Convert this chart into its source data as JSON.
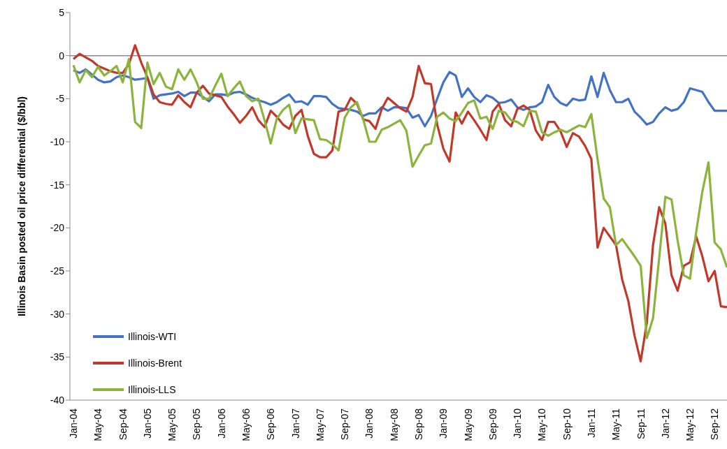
{
  "chart_data": {
    "type": "line",
    "ylabel": "Illinois Basin posted oil price differential ($/bbl)",
    "categories": [
      "Jan-04",
      null,
      null,
      null,
      "May-04",
      null,
      null,
      null,
      "Sep-04",
      null,
      null,
      null,
      "Jan-05",
      null,
      null,
      null,
      "May-05",
      null,
      null,
      null,
      "Sep-05",
      null,
      null,
      null,
      "Jan-06",
      null,
      null,
      null,
      "May-06",
      null,
      null,
      null,
      "Sep-06",
      null,
      null,
      null,
      "Jan-07",
      null,
      null,
      null,
      "May-07",
      null,
      null,
      null,
      "Sep-07",
      null,
      null,
      null,
      "Jan-08",
      null,
      null,
      null,
      "May-08",
      null,
      null,
      null,
      "Sep-08",
      null,
      null,
      null,
      "Jan-09",
      null,
      null,
      null,
      "May-09",
      null,
      null,
      null,
      "Sep-09",
      null,
      null,
      null,
      "Jan-10",
      null,
      null,
      null,
      "May-10",
      null,
      null,
      null,
      "Sep-10",
      null,
      null,
      null,
      "Jan-11",
      null,
      null,
      null,
      "May-11",
      null,
      null,
      null,
      "Sep-11",
      null,
      null,
      null,
      "Jan-12",
      null,
      null,
      null,
      "May-12",
      null,
      null,
      null,
      "Sep-12",
      null,
      null
    ],
    "series": [
      {
        "name": "Illinois-WTI",
        "color": "#4472c4",
        "values": [
          -1.7,
          -2.0,
          -1.6,
          -2.2,
          -2.8,
          -3.1,
          -3.0,
          -2.5,
          -2.3,
          -2.5,
          -2.8,
          -2.7,
          -2.6,
          -5.0,
          -4.6,
          -4.5,
          -4.4,
          -4.2,
          -4.7,
          -4.3,
          -4.3,
          -4.8,
          -5.3,
          -4.5,
          -4.5,
          -4.6,
          -4.3,
          -4.2,
          -4.5,
          -4.9,
          -5.2,
          -5.4,
          -5.7,
          -5.4,
          -4.9,
          -4.5,
          -5.4,
          -5.3,
          -5.7,
          -4.7,
          -4.7,
          -4.8,
          -5.6,
          -6.1,
          -6.2,
          -6.3,
          -6.5,
          -7.0,
          -6.7,
          -6.7,
          -6.0,
          -6.4,
          -6.0,
          -6.0,
          -6.1,
          -7.2,
          -6.9,
          -8.2,
          -7.0,
          -5.0,
          -3.1,
          -1.9,
          -2.3,
          -4.8,
          -3.8,
          -4.8,
          -5.4,
          -4.6,
          -4.9,
          -5.5,
          -5.4,
          -5.1,
          -6.0,
          -6.3,
          -6.0,
          -5.9,
          -5.4,
          -3.4,
          -4.8,
          -5.5,
          -5.8,
          -5.0,
          -5.2,
          -5.1,
          -2.4,
          -4.8,
          -2.0,
          -4.0,
          -5.4,
          -5.4,
          -5.0,
          -6.5,
          -7.2,
          -8.0,
          -7.7,
          -6.7,
          -6.0,
          -6.4,
          -6.2,
          -5.4,
          -3.8,
          -4.0,
          -4.2,
          -5.4,
          -6.4,
          -6.4,
          -6.4
        ]
      },
      {
        "name": "Illinois-Brent",
        "color": "#c0392b",
        "values": [
          -0.4,
          0.2,
          -0.2,
          -0.6,
          -1.2,
          -1.5,
          -1.8,
          -2.0,
          -2.0,
          -1.0,
          1.2,
          -0.8,
          -2.5,
          -4.5,
          -5.4,
          -5.6,
          -5.7,
          -4.6,
          -5.4,
          -6.0,
          -4.3,
          -3.5,
          -4.4,
          -4.6,
          -4.8,
          -5.9,
          -6.8,
          -7.8,
          -7.0,
          -6.0,
          -7.5,
          -8.3,
          -6.4,
          -7.1,
          -8.0,
          -8.5,
          -7.0,
          -6.3,
          -9.3,
          -11.4,
          -11.8,
          -11.8,
          -11.0,
          -6.5,
          -6.3,
          -4.9,
          -5.6,
          -7.4,
          -7.6,
          -8.5,
          -6.2,
          -4.9,
          -5.5,
          -6.1,
          -6.5,
          -4.8,
          -1.2,
          -3.2,
          -3.3,
          -8.0,
          -10.8,
          -12.3,
          -6.6,
          -7.9,
          -6.5,
          -7.5,
          -8.6,
          -9.8,
          -6.5,
          -5.6,
          -7.5,
          -8.2,
          -6.2,
          -5.8,
          -6.3,
          -8.7,
          -9.8,
          -7.7,
          -7.7,
          -8.8,
          -10.6,
          -9.0,
          -9.4,
          -10.5,
          -12.0,
          -22.3,
          -20.0,
          -21.0,
          -22.0,
          -26.0,
          -28.5,
          -32.5,
          -35.5,
          -31.0,
          -22.0,
          -17.6,
          -19.5,
          -25.5,
          -27.3,
          -24.4,
          -24.0,
          -21.0,
          -23.3,
          -26.2,
          -25.0,
          -29.1,
          -29.2
        ]
      },
      {
        "name": "Illinois-LLS",
        "color": "#8cb43d",
        "values": [
          -1.1,
          -3.1,
          -1.7,
          -2.5,
          -1.3,
          -2.3,
          -1.8,
          -1.2,
          -3.1,
          -0.4,
          -7.7,
          -8.4,
          -0.8,
          -3.3,
          -2.0,
          -3.6,
          -3.9,
          -1.6,
          -2.8,
          -1.6,
          -3.1,
          -5.0,
          -5.0,
          -3.5,
          -2.1,
          -4.7,
          -3.8,
          -3.0,
          -4.7,
          -5.3,
          -5.0,
          -7.5,
          -10.2,
          -7.3,
          -6.3,
          -5.7,
          -9.0,
          -7.3,
          -7.4,
          -7.5,
          -9.7,
          -9.8,
          -10.3,
          -11.0,
          -7.2,
          -6.0,
          -5.4,
          -7.4,
          -10.0,
          -10.0,
          -8.6,
          -8.3,
          -7.9,
          -7.5,
          -8.7,
          -12.9,
          -11.6,
          -10.4,
          -10.2,
          -7.1,
          -6.6,
          -7.3,
          -7.6,
          -6.6,
          -5.5,
          -5.2,
          -7.3,
          -7.1,
          -8.5,
          -6.4,
          -6.6,
          -7.5,
          -7.7,
          -8.2,
          -6.4,
          -6.5,
          -8.9,
          -9.3,
          -8.9,
          -8.6,
          -8.9,
          -8.5,
          -8.1,
          -8.3,
          -6.8,
          -12.0,
          -16.6,
          -17.6,
          -22.0,
          -21.3,
          -22.3,
          -23.3,
          -24.4,
          -32.8,
          -30.5,
          -23.5,
          -16.4,
          -16.7,
          -21.5,
          -25.5,
          -25.9,
          -20.5,
          -15.8,
          -12.4,
          -21.7,
          -22.5,
          -24.6
        ]
      }
    ],
    "ylim": [
      -40,
      5
    ],
    "yticks": [
      -40,
      -35,
      -30,
      -25,
      -20,
      -15,
      -10,
      -5,
      0,
      5
    ],
    "ref_lines": [
      {
        "axis": "y",
        "value": 0,
        "color": "#898989"
      }
    ],
    "grid": false,
    "legend": "bottom left",
    "marker": "none",
    "line_style": "solid"
  }
}
